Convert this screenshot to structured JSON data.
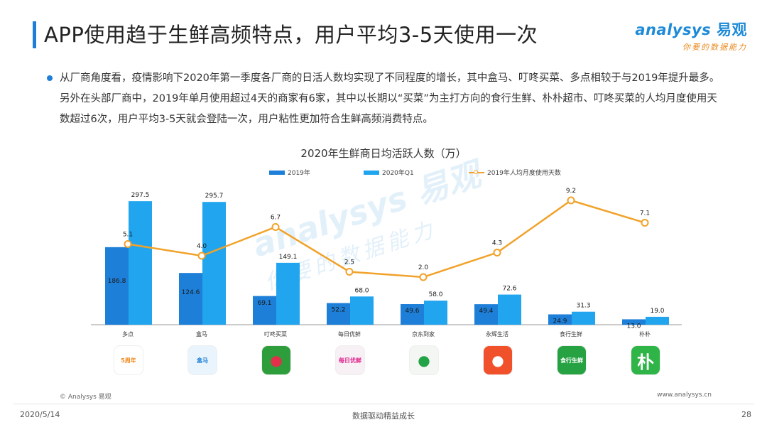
{
  "header": {
    "title": "APP使用趋于生鲜高频特点，用户平均3-5天使用一次",
    "logo_brand": "analysys",
    "logo_cn": "易观",
    "logo_slogan": "你要的数据能力"
  },
  "summary": {
    "text": "从厂商角度看，疫情影响下2020年第一季度各厂商的日活人数均实现了不同程度的增长，其中盒马、叮咚买菜、多点相较于与2019年提升最多。另外在头部厂商中，2019年单月使用超过4天的商家有6家，其中以长期以“买菜”为主打方向的食行生鲜、朴朴超市、叮咚买菜的人均月度使用天数超过6次，用户平均3-5天就会登陆一次，用户粘性更加符合生鲜高频消费特点。"
  },
  "watermark": {
    "line1": "analysys 易观",
    "line2": "你要的数据能力"
  },
  "chart_data": {
    "type": "bar",
    "title": "2020年生鲜商日均活跃人数（万）",
    "categories": [
      "多点",
      "盒马",
      "叮咚买菜",
      "每日优鲜",
      "京东到家",
      "永辉生活",
      "食行生鲜",
      "朴朴"
    ],
    "series": [
      {
        "name": "2019年",
        "type": "bar",
        "color": "#1e7fd8",
        "values": [
          186.8,
          124.6,
          69.1,
          52.2,
          49.6,
          49.4,
          24.9,
          13.0
        ]
      },
      {
        "name": "2020年Q1",
        "type": "bar",
        "color": "#21a5ee",
        "values": [
          297.5,
          295.7,
          149.1,
          68.0,
          58.0,
          72.6,
          31.3,
          19.0
        ]
      },
      {
        "name": "2019年人均月度使用天数",
        "type": "line",
        "color": "#f1a22a",
        "values": [
          5.1,
          4.0,
          6.7,
          2.5,
          2.0,
          4.3,
          9.2,
          7.1
        ]
      }
    ],
    "ylim_bars": [
      0,
      320
    ],
    "ylim_line": [
      0,
      10
    ],
    "legend_position": "top",
    "grid": false
  },
  "apps": [
    {
      "name": "多点",
      "icon": "duodian-app-icon",
      "badge": "5周年",
      "bg": "#ffffff",
      "fg": "#f08a1e"
    },
    {
      "name": "盒马",
      "icon": "hema-app-icon",
      "badge": "盒马",
      "bg": "#e9f4fc",
      "fg": "#1e7fd8"
    },
    {
      "name": "叮咚买菜",
      "icon": "dingdong-app-icon",
      "badge": "",
      "bg": "#2e9e3c",
      "fg": "#e2304a"
    },
    {
      "name": "每日优鲜",
      "icon": "missfresh-app-icon",
      "badge": "每日优鲜",
      "bg": "#f7f0f5",
      "fg": "#e0208a"
    },
    {
      "name": "京东到家",
      "icon": "jddj-app-icon",
      "badge": "",
      "bg": "#f3f6f2",
      "fg": "#22a345"
    },
    {
      "name": "永辉生活",
      "icon": "yonghui-app-icon",
      "badge": "",
      "bg": "#f0502a",
      "fg": "#ffffff"
    },
    {
      "name": "食行生鲜",
      "icon": "shixing-app-icon",
      "badge": "食行生鲜",
      "bg": "#27a243",
      "fg": "#ffffff"
    },
    {
      "name": "朴朴",
      "icon": "pupu-app-icon",
      "badge": "朴",
      "bg": "#2eb447",
      "fg": "#ffffff"
    }
  ],
  "footer": {
    "copyright": "© Analysys 易观",
    "url": "www.analysys.cn",
    "date": "2020/5/14",
    "center": "数据驱动精益成长",
    "page": "28"
  }
}
